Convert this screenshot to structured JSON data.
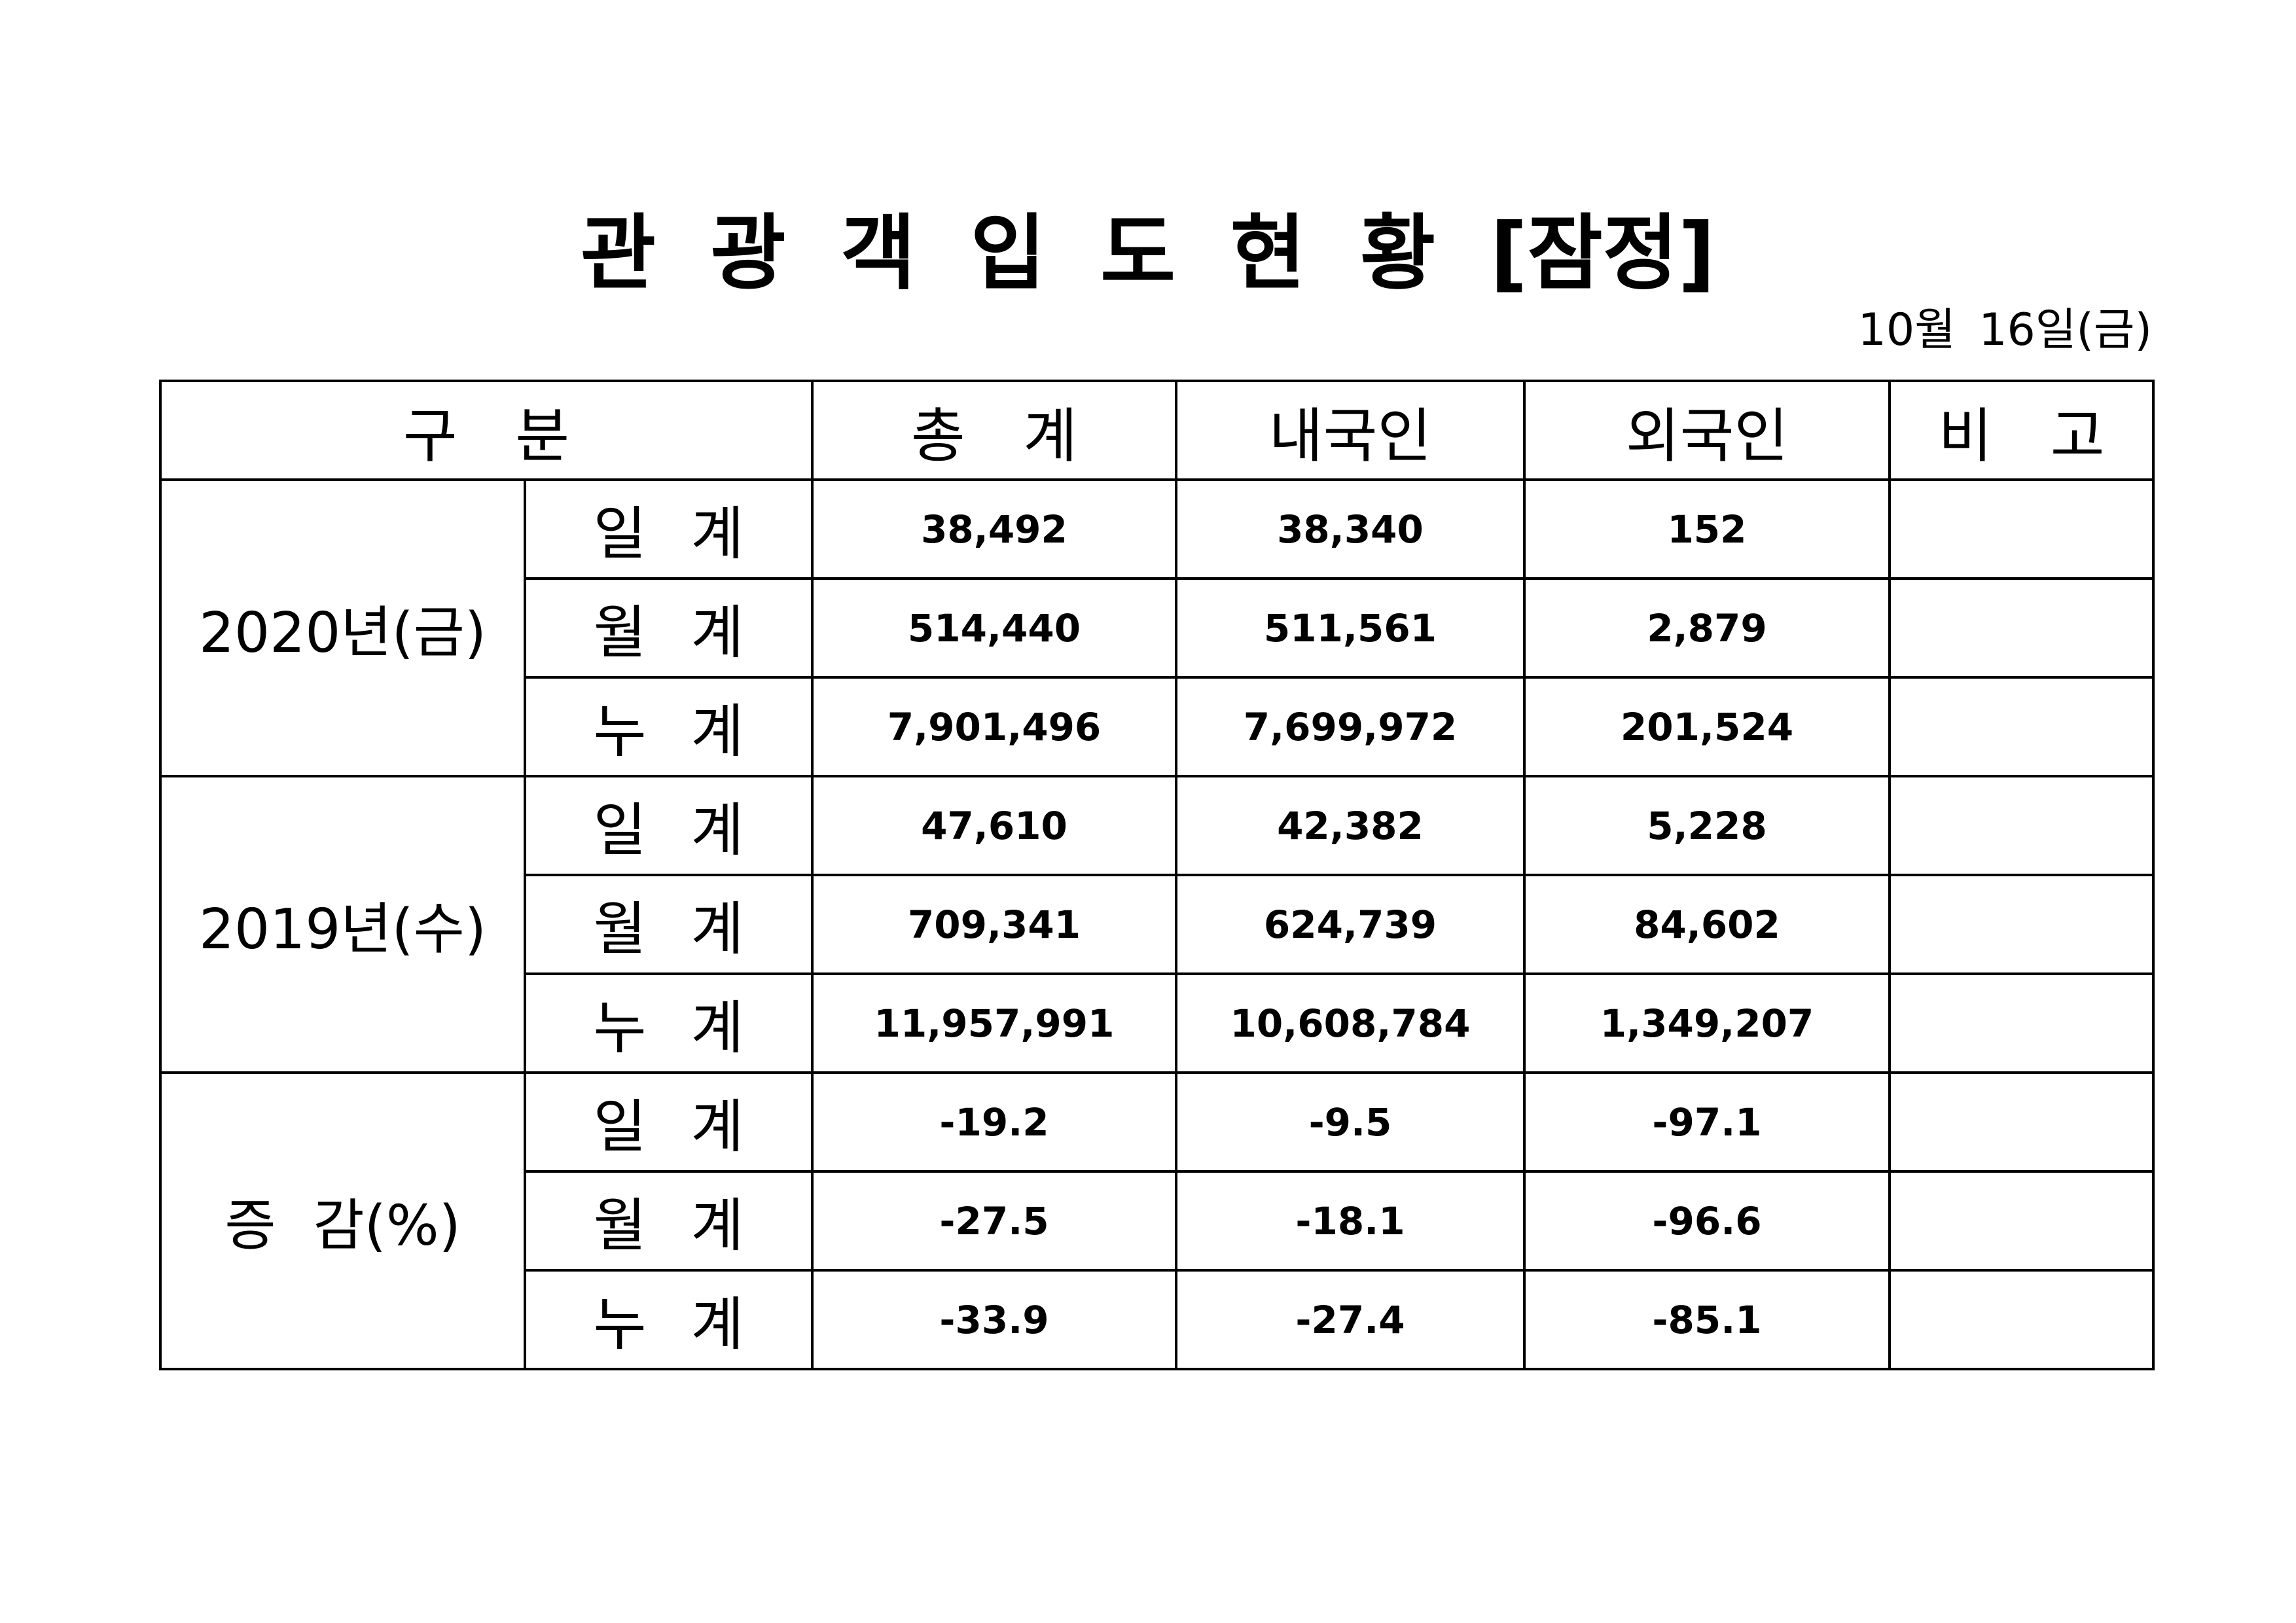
{
  "header": {
    "title": "관 광 객 입 도 현 황 [잠정]",
    "date": "10월 16일(금)"
  },
  "table": {
    "columns": [
      "구 분",
      "총 계",
      "내국인",
      "외국인",
      "비 고"
    ],
    "groups": [
      {
        "label": "2020년(금)",
        "rows": [
          {
            "label": "일 계",
            "values": [
              "38,492",
              "38,340",
              "152"
            ]
          },
          {
            "label": "월 계",
            "values": [
              "514,440",
              "511,561",
              "2,879"
            ]
          },
          {
            "label": "누 계",
            "values": [
              "7,901,496",
              "7,699,972",
              "201,524"
            ]
          }
        ]
      },
      {
        "label": "2019년(수)",
        "rows": [
          {
            "label": "일 계",
            "values": [
              "47,610",
              "42,382",
              "5,228"
            ]
          },
          {
            "label": "월 계",
            "values": [
              "709,341",
              "624,739",
              "84,602"
            ]
          },
          {
            "label": "누 계",
            "values": [
              "11,957,991",
              "10,608,784",
              "1,349,207"
            ]
          }
        ]
      },
      {
        "label": "증 감(%)",
        "rows": [
          {
            "label": "일 계",
            "values": [
              "-19.2",
              "-9.5",
              "-97.1"
            ]
          },
          {
            "label": "월 계",
            "values": [
              "-27.5",
              "-18.1",
              "-96.6"
            ]
          },
          {
            "label": "누 계",
            "values": [
              "-33.9",
              "-27.4",
              "-85.1"
            ]
          }
        ]
      }
    ]
  }
}
